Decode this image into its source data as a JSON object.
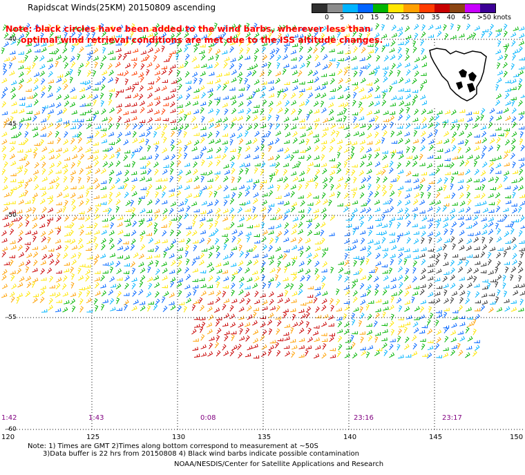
{
  "title": "Rapidscat Winds(25KM) 20150809 ascending",
  "note": {
    "line1": "Note: black circles have been added to the wind barbs, wherever less than",
    "line2": "optimal wind retrieval conditions are met due to the ISS altitude changes."
  },
  "legend": {
    "labels": [
      "0",
      "5",
      "10",
      "15",
      "20",
      "25",
      "30",
      "35",
      "40",
      "45",
      ">50 knots"
    ],
    "colors": [
      "#303030",
      "#8c8c8c",
      "#00b4ff",
      "#0064ff",
      "#00b400",
      "#ffe600",
      "#ffa000",
      "#ff3c00",
      "#c80000",
      "#8b4513",
      "#c800ff",
      "#3c0096"
    ]
  },
  "lat_labels": [
    "-40",
    "-45",
    "-50",
    "-55",
    "-60"
  ],
  "lon_labels": [
    "120",
    "125",
    "130",
    "135",
    "140",
    "145",
    "150"
  ],
  "time_labels": [
    "1:42",
    "1:43",
    "0:08",
    "23:16",
    "23:17"
  ],
  "footer": {
    "line1": "Note: 1) Times are GMT 2)Times along bottom correspond to measurement at ~50S",
    "line2": "3)Data buffer is 22 hrs from 20150808 4) Black wind barbs indicate possible contamination",
    "line3": "NOAA/NESDIS/Center for Satellite Applications and Research"
  },
  "map": {
    "lon_range": [
      120,
      150
    ],
    "lat_range": [
      -60,
      -40
    ],
    "grid": true,
    "land": "Tasmania"
  }
}
